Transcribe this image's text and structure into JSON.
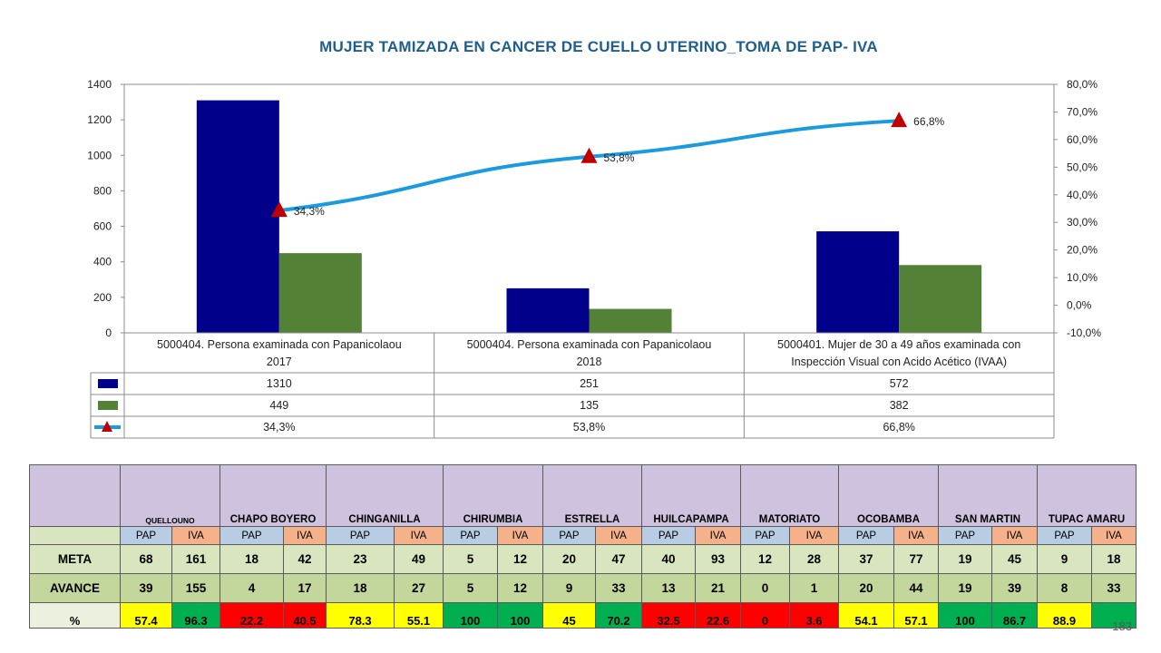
{
  "title": "MUJER TAMIZADA EN CANCER DE CUELLO UTERINO_TOMA DE PAP- IVA",
  "page_number": "183",
  "chart_data": {
    "type": "bar",
    "categories": [
      [
        "5000404. Persona examinada con Papanicolaou",
        "2017"
      ],
      [
        "5000404. Persona examinada con Papanicolaou",
        "2018"
      ],
      [
        "5000401.  Mujer  de 30 a 49 años examinada con",
        "Inspección Visual con Acido Acético (IVAA)"
      ]
    ],
    "series": [
      {
        "values": [
          1310,
          251,
          572
        ],
        "labels": [
          "1310",
          "251",
          "572"
        ],
        "color": "#00008b",
        "kind": "bar"
      },
      {
        "values": [
          449,
          135,
          382
        ],
        "labels": [
          "449",
          "135",
          "382"
        ],
        "color": "#538135",
        "kind": "bar"
      },
      {
        "values": [
          34.3,
          53.8,
          66.8
        ],
        "labels": [
          "34,3%",
          "53,8%",
          "66,8%"
        ],
        "color": "#1a9be0",
        "marker_color": "#c00000",
        "kind": "line",
        "axis": "secondary"
      }
    ],
    "ylim": [
      0,
      1400
    ],
    "yticks": [
      "0",
      "200",
      "400",
      "600",
      "800",
      "1000",
      "1200",
      "1400"
    ],
    "y2lim": [
      -10,
      80
    ],
    "y2ticks": [
      "-10,0%",
      "0,0%",
      "10,0%",
      "20,0%",
      "30,0%",
      "40,0%",
      "50,0%",
      "60,0%",
      "70,0%",
      "80,0%"
    ],
    "grid": false,
    "legend": "data-table"
  },
  "table": {
    "districts": [
      "QUELLOUNO",
      "CHAPO BOYERO",
      "CHINGANILLA",
      "CHIRUMBIA",
      "ESTRELLA",
      "HUILCAPAMPA",
      "MATORIATO",
      "OCOBAMBA",
      "SAN MARTIN",
      "TUPAC AMARU"
    ],
    "sub_labels": [
      "PAP",
      "IVA"
    ],
    "rows": [
      {
        "label": "META",
        "values": [
          "68",
          "161",
          "18",
          "42",
          "23",
          "49",
          "5",
          "12",
          "20",
          "47",
          "40",
          "93",
          "12",
          "28",
          "37",
          "77",
          "19",
          "45",
          "9",
          "18"
        ]
      },
      {
        "label": "AVANCE",
        "values": [
          "39",
          "155",
          "4",
          "17",
          "18",
          "27",
          "5",
          "12",
          "9",
          "33",
          "13",
          "21",
          "0",
          "1",
          "20",
          "44",
          "19",
          "39",
          "8",
          "33"
        ]
      }
    ],
    "pct_row": {
      "label": "%",
      "values": [
        "57.4",
        "96.3",
        "22.2",
        "40.5",
        "78.3",
        "55.1",
        "100",
        "100",
        "45",
        "70.2",
        "32.5",
        "22.6",
        "0",
        "3.6",
        "54.1",
        "57.1",
        "100",
        "86.7",
        "88.9",
        ""
      ],
      "status": [
        "yellow",
        "green",
        "red",
        "red",
        "yellow",
        "yellow",
        "green",
        "green",
        "yellow",
        "green",
        "red",
        "red",
        "red",
        "red",
        "yellow",
        "yellow",
        "green",
        "green",
        "yellow",
        "green"
      ]
    }
  }
}
